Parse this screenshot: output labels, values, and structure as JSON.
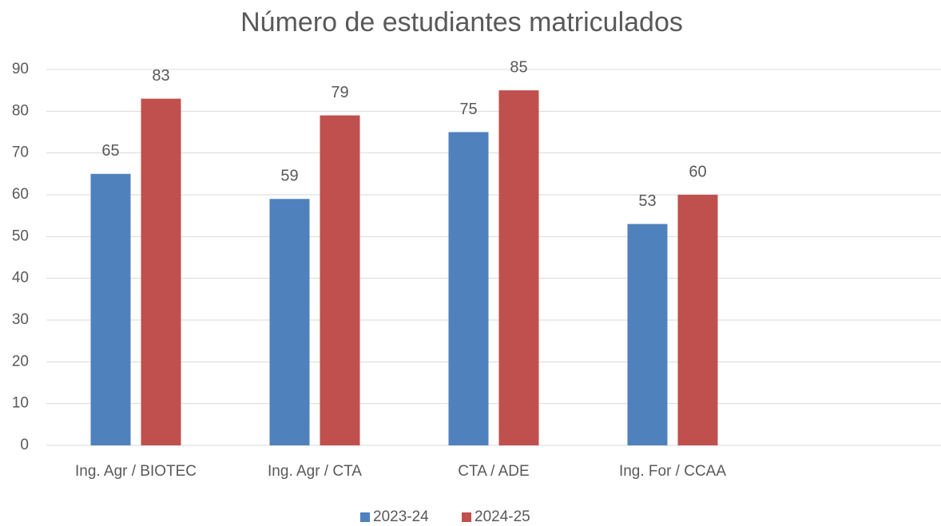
{
  "chart_data": {
    "type": "bar",
    "title": "Número de estudiantes matriculados",
    "categories": [
      "Ing. Agr / BIOTEC",
      "Ing. Agr / CTA",
      "CTA / ADE",
      "Ing. For / CCAA",
      null
    ],
    "series": [
      {
        "name": "2023-24",
        "color": "#4f81bd",
        "values": [
          65,
          59,
          75,
          53,
          null
        ]
      },
      {
        "name": "2024-25",
        "color": "#c0504d",
        "values": [
          83,
          79,
          85,
          60,
          null
        ]
      }
    ],
    "ylim": [
      0,
      90
    ],
    "yticks": [
      0,
      10,
      20,
      30,
      40,
      50,
      60,
      70,
      80,
      90
    ],
    "grid": true,
    "legend": "bottom"
  }
}
